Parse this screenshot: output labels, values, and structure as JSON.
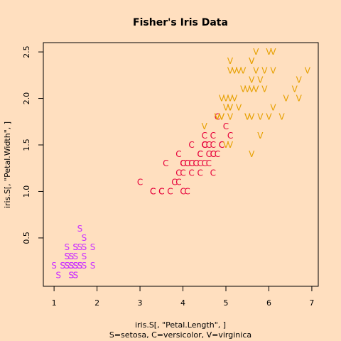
{
  "chart_data": {
    "type": "scatter",
    "title": "Fisher's Iris Data",
    "xlabel": "iris.S[, \"Petal.Length\", ]",
    "ylabel": "iris.S[, \"Petal.Width\", ]",
    "subtitle": "S=setosa,  C=versicolor,  V=virginica",
    "xlim": [
      0.75,
      7.15
    ],
    "ylim": [
      -0.02,
      2.6
    ],
    "xticks": [
      1,
      2,
      3,
      4,
      5,
      6,
      7
    ],
    "yticks": [
      0.5,
      1.0,
      1.5,
      2.0,
      2.5
    ],
    "ytick_labels": [
      "0.5",
      "1.0",
      "1.5",
      "2.0",
      "2.5"
    ],
    "grid": false,
    "colors": {
      "background": "#ffdfbf",
      "setosa": "#cc33ff",
      "versicolor": "#e6003a",
      "virginica": "#e6a000"
    },
    "series": [
      {
        "name": "S",
        "points": [
          [
            1.4,
            0.2
          ],
          [
            1.4,
            0.2
          ],
          [
            1.3,
            0.2
          ],
          [
            1.5,
            0.2
          ],
          [
            1.4,
            0.2
          ],
          [
            1.7,
            0.4
          ],
          [
            1.4,
            0.3
          ],
          [
            1.5,
            0.2
          ],
          [
            1.4,
            0.2
          ],
          [
            1.5,
            0.1
          ],
          [
            1.5,
            0.2
          ],
          [
            1.6,
            0.2
          ],
          [
            1.4,
            0.1
          ],
          [
            1.1,
            0.1
          ],
          [
            1.2,
            0.2
          ],
          [
            1.5,
            0.4
          ],
          [
            1.3,
            0.4
          ],
          [
            1.4,
            0.3
          ],
          [
            1.7,
            0.3
          ],
          [
            1.5,
            0.3
          ],
          [
            1.7,
            0.2
          ],
          [
            1.5,
            0.4
          ],
          [
            1.0,
            0.2
          ],
          [
            1.7,
            0.5
          ],
          [
            1.9,
            0.2
          ],
          [
            1.6,
            0.2
          ],
          [
            1.6,
            0.4
          ],
          [
            1.5,
            0.2
          ],
          [
            1.4,
            0.2
          ],
          [
            1.6,
            0.2
          ],
          [
            1.6,
            0.2
          ],
          [
            1.5,
            0.4
          ],
          [
            1.5,
            0.1
          ],
          [
            1.4,
            0.2
          ],
          [
            1.5,
            0.2
          ],
          [
            1.2,
            0.2
          ],
          [
            1.3,
            0.2
          ],
          [
            1.4,
            0.1
          ],
          [
            1.3,
            0.2
          ],
          [
            1.5,
            0.2
          ],
          [
            1.3,
            0.3
          ],
          [
            1.3,
            0.3
          ],
          [
            1.3,
            0.2
          ],
          [
            1.6,
            0.6
          ],
          [
            1.9,
            0.4
          ],
          [
            1.4,
            0.3
          ],
          [
            1.6,
            0.2
          ],
          [
            1.4,
            0.2
          ],
          [
            1.5,
            0.2
          ],
          [
            1.4,
            0.2
          ]
        ]
      },
      {
        "name": "C",
        "points": [
          [
            4.7,
            1.4
          ],
          [
            4.5,
            1.5
          ],
          [
            4.9,
            1.5
          ],
          [
            4.0,
            1.3
          ],
          [
            4.6,
            1.5
          ],
          [
            4.5,
            1.3
          ],
          [
            4.7,
            1.6
          ],
          [
            3.3,
            1.0
          ],
          [
            4.6,
            1.3
          ],
          [
            3.9,
            1.4
          ],
          [
            3.5,
            1.0
          ],
          [
            4.2,
            1.5
          ],
          [
            4.0,
            1.0
          ],
          [
            4.7,
            1.4
          ],
          [
            3.6,
            1.3
          ],
          [
            4.4,
            1.4
          ],
          [
            4.5,
            1.5
          ],
          [
            4.1,
            1.0
          ],
          [
            4.5,
            1.5
          ],
          [
            3.9,
            1.1
          ],
          [
            4.8,
            1.8
          ],
          [
            4.0,
            1.3
          ],
          [
            4.9,
            1.5
          ],
          [
            4.7,
            1.2
          ],
          [
            4.3,
            1.3
          ],
          [
            4.4,
            1.4
          ],
          [
            4.8,
            1.4
          ],
          [
            5.0,
            1.7
          ],
          [
            4.5,
            1.5
          ],
          [
            3.5,
            1.0
          ],
          [
            3.8,
            1.1
          ],
          [
            3.7,
            1.0
          ],
          [
            3.9,
            1.2
          ],
          [
            5.1,
            1.6
          ],
          [
            4.5,
            1.5
          ],
          [
            4.5,
            1.6
          ],
          [
            4.7,
            1.5
          ],
          [
            4.4,
            1.3
          ],
          [
            4.1,
            1.3
          ],
          [
            4.0,
            1.3
          ],
          [
            4.4,
            1.2
          ],
          [
            4.6,
            1.4
          ],
          [
            4.0,
            1.2
          ],
          [
            3.3,
            1.0
          ],
          [
            4.2,
            1.3
          ],
          [
            4.2,
            1.2
          ],
          [
            4.2,
            1.3
          ],
          [
            4.3,
            1.3
          ],
          [
            3.0,
            1.1
          ],
          [
            4.1,
            1.3
          ]
        ]
      },
      {
        "name": "V",
        "points": [
          [
            6.0,
            2.5
          ],
          [
            5.1,
            1.9
          ],
          [
            5.9,
            2.1
          ],
          [
            5.6,
            1.8
          ],
          [
            5.8,
            2.2
          ],
          [
            6.6,
            2.1
          ],
          [
            4.5,
            1.7
          ],
          [
            6.3,
            1.8
          ],
          [
            5.8,
            1.8
          ],
          [
            6.1,
            2.5
          ],
          [
            5.1,
            2.0
          ],
          [
            5.3,
            1.9
          ],
          [
            5.5,
            2.1
          ],
          [
            5.0,
            2.0
          ],
          [
            5.1,
            2.4
          ],
          [
            5.3,
            2.3
          ],
          [
            5.5,
            1.8
          ],
          [
            6.7,
            2.2
          ],
          [
            6.9,
            2.3
          ],
          [
            5.0,
            1.5
          ],
          [
            5.7,
            2.3
          ],
          [
            4.9,
            2.0
          ],
          [
            6.7,
            2.0
          ],
          [
            4.9,
            1.8
          ],
          [
            5.7,
            2.1
          ],
          [
            6.0,
            1.8
          ],
          [
            4.8,
            1.8
          ],
          [
            4.9,
            1.8
          ],
          [
            5.6,
            2.1
          ],
          [
            5.8,
            1.6
          ],
          [
            6.1,
            1.9
          ],
          [
            6.4,
            2.0
          ],
          [
            5.6,
            2.2
          ],
          [
            5.1,
            1.5
          ],
          [
            5.6,
            1.4
          ],
          [
            6.1,
            2.3
          ],
          [
            5.6,
            2.4
          ],
          [
            5.5,
            1.8
          ],
          [
            4.8,
            1.8
          ],
          [
            5.4,
            2.1
          ],
          [
            5.6,
            2.4
          ],
          [
            5.1,
            2.3
          ],
          [
            5.1,
            1.9
          ],
          [
            5.9,
            2.3
          ],
          [
            5.7,
            2.5
          ],
          [
            5.2,
            2.3
          ],
          [
            5.0,
            1.9
          ],
          [
            5.2,
            2.0
          ],
          [
            5.4,
            2.3
          ],
          [
            5.1,
            1.8
          ]
        ]
      }
    ]
  }
}
